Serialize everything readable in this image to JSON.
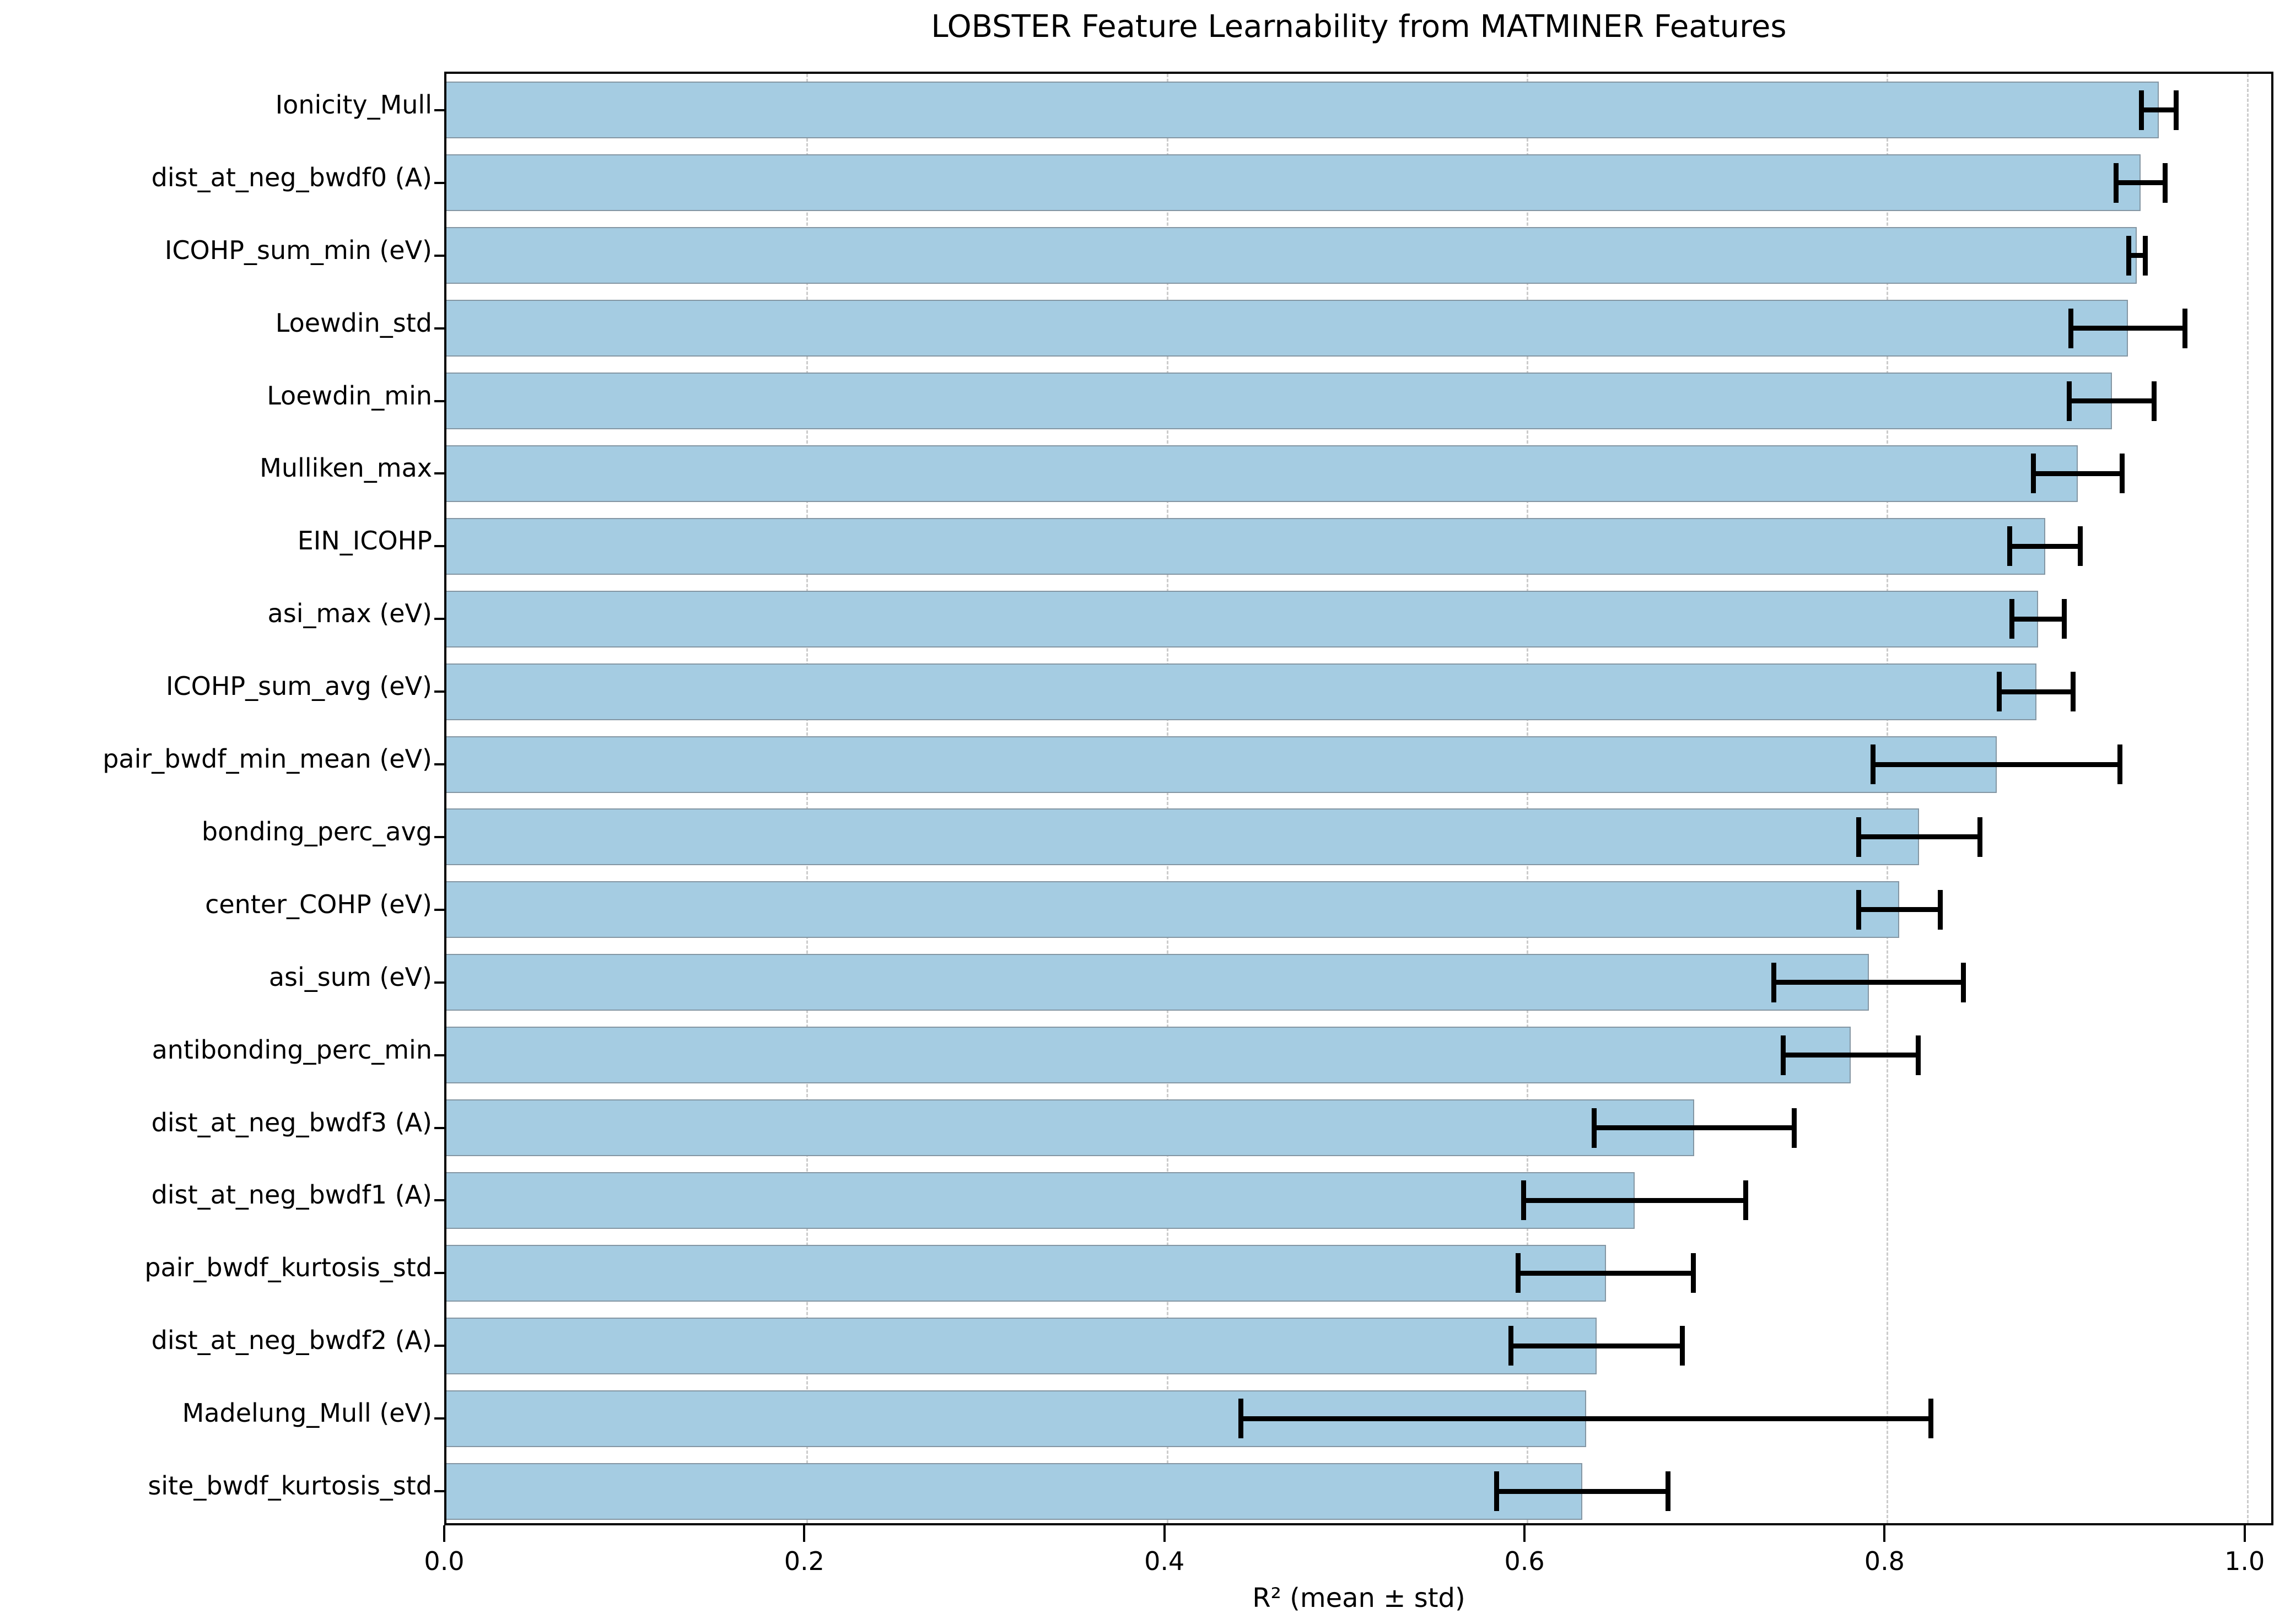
{
  "title": "LOBSTER Feature Learnability from MATMINER Features",
  "chart_data": {
    "type": "bar",
    "orientation": "horizontal",
    "title": "LOBSTER Feature Learnability from MATMINER Features",
    "xlabel": "R² (mean ± std)",
    "ylabel": "",
    "xlim": [
      0.0,
      1.016
    ],
    "x_ticks": [
      0.0,
      0.2,
      0.4,
      0.6,
      0.8,
      1.0
    ],
    "x_tick_labels": [
      "0.0",
      "0.2",
      "0.4",
      "0.6",
      "0.8",
      "1.0"
    ],
    "grid": "vertical-dashed",
    "legend": "none",
    "error_bars": "horizontal, mean ± std",
    "categories": [
      "Ionicity_Mull",
      "dist_at_neg_bwdf0 (A)",
      "ICOHP_sum_min (eV)",
      "Loewdin_std",
      "Loewdin_min",
      "Mulliken_max",
      "EIN_ICOHP",
      "asi_max (eV)",
      "ICOHP_sum_avg (eV)",
      "pair_bwdf_min_mean (eV)",
      "bonding_perc_avg",
      "center_COHP (eV)",
      "asi_sum (eV)",
      "antibonding_perc_min",
      "dist_at_neg_bwdf3 (A)",
      "dist_at_neg_bwdf1 (A)",
      "pair_bwdf_kurtosis_std",
      "dist_at_neg_bwdf2 (A)",
      "Madelung_Mull (eV)",
      "site_bwdf_kurtosis_std"
    ],
    "series": [
      {
        "name": "R2_mean",
        "values": [
          0.951,
          0.941,
          0.939,
          0.934,
          0.925,
          0.906,
          0.888,
          0.884,
          0.883,
          0.861,
          0.818,
          0.807,
          0.79,
          0.78,
          0.693,
          0.66,
          0.644,
          0.639,
          0.633,
          0.631
        ]
      },
      {
        "name": "R2_std",
        "values": [
          0.011,
          0.015,
          0.006,
          0.033,
          0.025,
          0.026,
          0.021,
          0.016,
          0.022,
          0.07,
          0.035,
          0.024,
          0.054,
          0.039,
          0.057,
          0.063,
          0.05,
          0.049,
          0.193,
          0.049
        ]
      }
    ],
    "colors": {
      "bar_fill": "#a5cce2",
      "bar_edge": "#8496a3",
      "error_bar": "#000000",
      "gridline": "#cccccc",
      "spine": "#000000",
      "text": "#000000",
      "background": "#ffffff"
    }
  }
}
